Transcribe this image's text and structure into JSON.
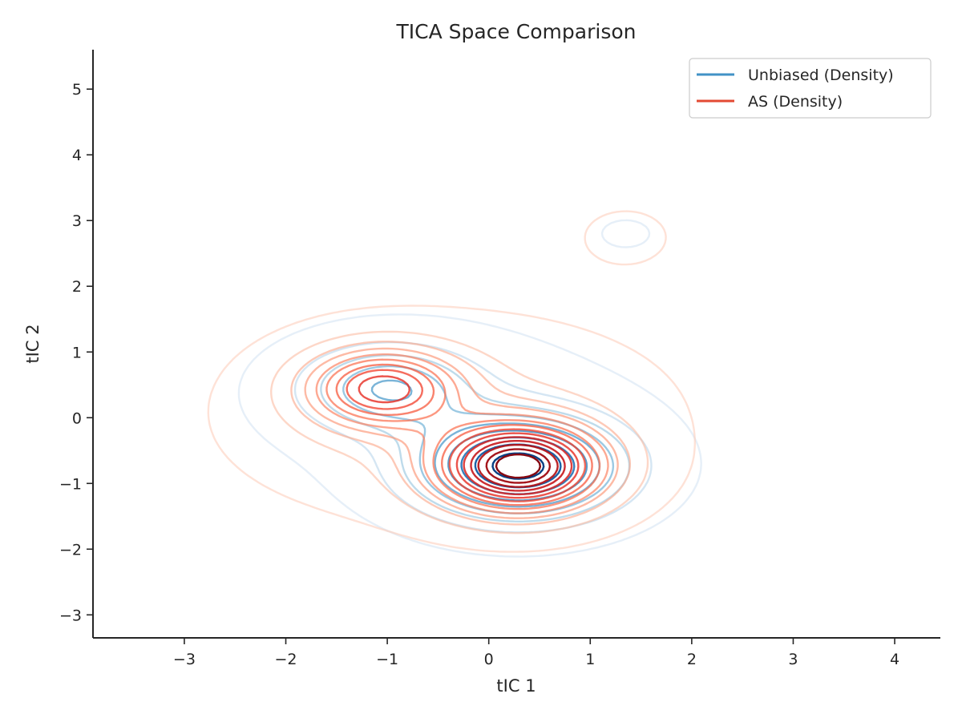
{
  "chart_data": {
    "type": "contour",
    "title": "TICA Space Comparison",
    "xlabel": "tIC 1",
    "ylabel": "tIC 2",
    "xlim": [
      -3.9,
      4.45
    ],
    "ylim": [
      -3.35,
      5.6
    ],
    "xticks": [
      -3,
      -2,
      -1,
      0,
      1,
      2,
      3,
      4
    ],
    "yticks": [
      -3,
      -2,
      -1,
      0,
      1,
      2,
      3,
      4,
      5
    ],
    "xtick_labels": [
      "−3",
      "−2",
      "−1",
      "0",
      "1",
      "2",
      "3",
      "4"
    ],
    "ytick_labels": [
      "−3",
      "−2",
      "−1",
      "0",
      "1",
      "2",
      "3",
      "4",
      "5"
    ],
    "grid": false,
    "legend_position": "top-right",
    "series": [
      {
        "name": "Unbiased (Density)",
        "color": "#4292c6",
        "colormap": "Blues",
        "levels": 9,
        "components": [
          {
            "cx": 0.3,
            "cy": -0.75,
            "sx": 0.65,
            "sy": 0.5,
            "w": 1.0
          },
          {
            "cx": -1.0,
            "cy": 0.45,
            "sx": 0.55,
            "sy": 0.42,
            "w": 0.45
          },
          {
            "cx": 1.35,
            "cy": 2.8,
            "sx": 0.25,
            "sy": 0.22,
            "w": 0.04
          },
          {
            "cx": -0.4,
            "cy": 0.1,
            "sx": 1.1,
            "sy": 0.8,
            "w": 0.08
          }
        ]
      },
      {
        "name": "AS (Density)",
        "color": "#e34a33",
        "colormap": "Reds",
        "levels": 14,
        "components": [
          {
            "cx": 0.3,
            "cy": -0.75,
            "sx": 0.55,
            "sy": 0.45,
            "w": 1.0
          },
          {
            "cx": -1.05,
            "cy": 0.45,
            "sx": 0.5,
            "sy": 0.4,
            "w": 0.6
          },
          {
            "cx": 1.35,
            "cy": 2.75,
            "sx": 0.35,
            "sy": 0.35,
            "w": 0.05
          },
          {
            "cx": -0.4,
            "cy": 0.0,
            "sx": 1.35,
            "sy": 0.95,
            "w": 0.12
          }
        ]
      }
    ]
  }
}
